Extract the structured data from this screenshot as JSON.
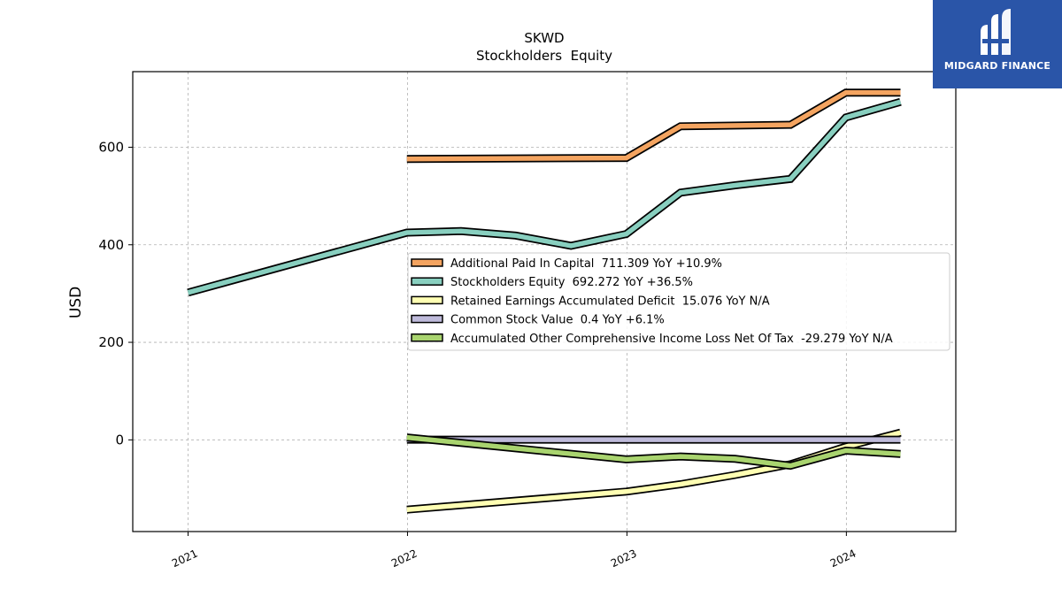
{
  "chart_data": {
    "type": "line",
    "title": "SKWD",
    "subtitle": "Stockholders  Equity",
    "xlabel": "",
    "ylabel": "USD",
    "xlim": [
      "2020-10-01",
      "2024-07-01"
    ],
    "ylim": [
      -188,
      755
    ],
    "x_ticks": [
      "2021",
      "2022",
      "2023",
      "2024"
    ],
    "y_ticks": [
      0,
      200,
      400,
      600
    ],
    "grid": true,
    "legend_position": "center-right",
    "series": [
      {
        "name": "Additional Paid In Capital  711.309 YoY +10.9%",
        "color": "#f4a460",
        "points": [
          [
            "2021-12-31",
            576
          ],
          [
            "2022-12-31",
            578
          ],
          [
            "2023-03-31",
            643
          ],
          [
            "2023-09-30",
            646
          ],
          [
            "2023-12-31",
            712
          ],
          [
            "2024-03-31",
            712
          ]
        ]
      },
      {
        "name": "Stockholders Equity  692.272 YoY +36.5%",
        "color": "#88cfbf",
        "points": [
          [
            "2021-01-01",
            302
          ],
          [
            "2021-12-31",
            425
          ],
          [
            "2022-03-31",
            428
          ],
          [
            "2022-06-30",
            419
          ],
          [
            "2022-09-30",
            398
          ],
          [
            "2022-12-31",
            422
          ],
          [
            "2023-03-31",
            507
          ],
          [
            "2023-06-30",
            522
          ],
          [
            "2023-09-30",
            535
          ],
          [
            "2023-12-31",
            661
          ],
          [
            "2024-03-31",
            693
          ]
        ]
      },
      {
        "name": "Retained Earnings Accumulated Deficit  15.076 YoY N/A",
        "color": "#ffffb3",
        "points": [
          [
            "2021-12-31",
            -143
          ],
          [
            "2022-12-31",
            -106
          ],
          [
            "2023-03-31",
            -91
          ],
          [
            "2023-06-30",
            -72
          ],
          [
            "2023-09-30",
            -50
          ],
          [
            "2023-12-31",
            -14
          ],
          [
            "2024-03-31",
            15
          ]
        ]
      },
      {
        "name": "Common Stock Value  0.4 YoY +6.1%",
        "color": "#bebada",
        "points": [
          [
            "2021-12-31",
            0.4
          ],
          [
            "2024-03-31",
            0.4
          ]
        ]
      },
      {
        "name": "Accumulated Other Comprehensive Income Loss Net Of Tax  -29.279 YoY N/A",
        "color": "#a9d46f",
        "points": [
          [
            "2021-12-31",
            5
          ],
          [
            "2022-12-31",
            -40
          ],
          [
            "2023-03-31",
            -34
          ],
          [
            "2023-06-30",
            -39
          ],
          [
            "2023-09-30",
            -53
          ],
          [
            "2023-12-31",
            -22
          ],
          [
            "2024-03-31",
            -29
          ]
        ]
      }
    ]
  },
  "logo": {
    "text": "MIDGARD FINANCE"
  }
}
